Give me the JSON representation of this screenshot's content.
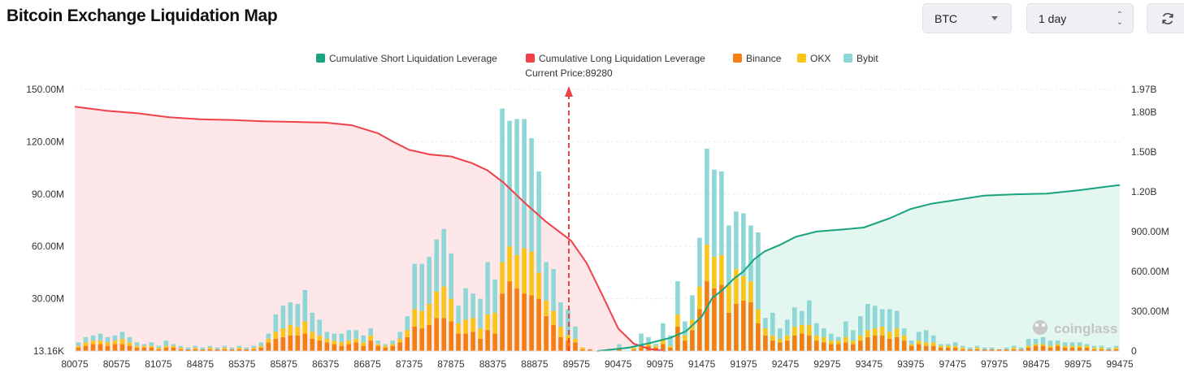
{
  "header": {
    "title": "Bitcoin Exchange Liquidation Map",
    "coin_select": "BTC",
    "range_select": "1 day"
  },
  "colors": {
    "short": "#1aa37f",
    "long": "#f04148",
    "binance": "#f47e12",
    "okx": "#fac51a",
    "bybit": "#8fd7d6",
    "long_fill": "#fde7e8",
    "short_fill": "#e3f6ef"
  },
  "chart_data": {
    "type": "bar",
    "title": "Bitcoin Exchange Liquidation Map",
    "current_price_label": "Current Price:89280",
    "current_price": 89280,
    "legend": [
      {
        "key": "short",
        "label": "Cumulative Short Liquidation Leverage"
      },
      {
        "key": "long",
        "label": "Cumulative Long Liquidation Leverage"
      },
      {
        "key": "binance",
        "label": "Binance"
      },
      {
        "key": "okx",
        "label": "OKX"
      },
      {
        "key": "bybit",
        "label": "Bybit"
      }
    ],
    "x_tick_labels": [
      "80075",
      "80575",
      "81075",
      "84875",
      "85375",
      "85875",
      "86375",
      "86875",
      "87375",
      "87875",
      "88375",
      "88875",
      "89575",
      "90475",
      "90975",
      "91475",
      "91975",
      "92475",
      "92975",
      "93475",
      "93975",
      "97475",
      "97975",
      "98475",
      "98975",
      "99475"
    ],
    "left_axis": {
      "tick_labels": [
        "13.16K",
        "30.00M",
        "60.00M",
        "90.00M",
        "120.00M",
        "150.00M"
      ],
      "tick_values": [
        0,
        30,
        60,
        90,
        120,
        150
      ],
      "max": 150,
      "unit": "M"
    },
    "right_axis": {
      "tick_labels": [
        "0",
        "300.00M",
        "600.00M",
        "900.00M",
        "1.20B",
        "1.50B",
        "1.80B",
        "1.97B"
      ],
      "tick_values": [
        0,
        300,
        600,
        900,
        1200,
        1500,
        1800,
        1970
      ],
      "max": 1970,
      "unit": "M"
    },
    "watermark": "coinglass",
    "bars": [
      {
        "binance": 2,
        "okx": 1,
        "bybit": 2
      },
      {
        "binance": 3,
        "okx": 2,
        "bybit": 3
      },
      {
        "binance": 4,
        "okx": 2,
        "bybit": 3
      },
      {
        "binance": 4,
        "okx": 2,
        "bybit": 4
      },
      {
        "binance": 3,
        "okx": 2,
        "bybit": 3
      },
      {
        "binance": 4,
        "okx": 2,
        "bybit": 3
      },
      {
        "binance": 4,
        "okx": 3,
        "bybit": 4
      },
      {
        "binance": 3,
        "okx": 2,
        "bybit": 3
      },
      {
        "binance": 2,
        "okx": 1,
        "bybit": 2
      },
      {
        "binance": 2,
        "okx": 1,
        "bybit": 1
      },
      {
        "binance": 2,
        "okx": 1,
        "bybit": 2
      },
      {
        "binance": 1,
        "okx": 1,
        "bybit": 1
      },
      {
        "binance": 2,
        "okx": 1,
        "bybit": 3
      },
      {
        "binance": 2,
        "okx": 1,
        "bybit": 1
      },
      {
        "binance": 1,
        "okx": 1,
        "bybit": 1
      },
      {
        "binance": 1,
        "okx": 0,
        "bybit": 1
      },
      {
        "binance": 1,
        "okx": 1,
        "bybit": 1
      },
      {
        "binance": 1,
        "okx": 0,
        "bybit": 1
      },
      {
        "binance": 1,
        "okx": 1,
        "bybit": 1
      },
      {
        "binance": 1,
        "okx": 0,
        "bybit": 1
      },
      {
        "binance": 1,
        "okx": 1,
        "bybit": 1
      },
      {
        "binance": 1,
        "okx": 0,
        "bybit": 1
      },
      {
        "binance": 1,
        "okx": 1,
        "bybit": 1
      },
      {
        "binance": 1,
        "okx": 0,
        "bybit": 1
      },
      {
        "binance": 1,
        "okx": 1,
        "bybit": 1
      },
      {
        "binance": 2,
        "okx": 1,
        "bybit": 2
      },
      {
        "binance": 5,
        "okx": 2,
        "bybit": 3
      },
      {
        "binance": 7,
        "okx": 4,
        "bybit": 10
      },
      {
        "binance": 8,
        "okx": 5,
        "bybit": 13
      },
      {
        "binance": 9,
        "okx": 6,
        "bybit": 13
      },
      {
        "binance": 9,
        "okx": 5,
        "bybit": 13
      },
      {
        "binance": 10,
        "okx": 7,
        "bybit": 18
      },
      {
        "binance": 7,
        "okx": 4,
        "bybit": 11
      },
      {
        "binance": 6,
        "okx": 3,
        "bybit": 9
      },
      {
        "binance": 5,
        "okx": 2,
        "bybit": 4
      },
      {
        "binance": 4,
        "okx": 2,
        "bybit": 4
      },
      {
        "binance": 3,
        "okx": 2,
        "bybit": 5
      },
      {
        "binance": 4,
        "okx": 2,
        "bybit": 6
      },
      {
        "binance": 5,
        "okx": 2,
        "bybit": 5
      },
      {
        "binance": 3,
        "okx": 2,
        "bybit": 4
      },
      {
        "binance": 6,
        "okx": 3,
        "bybit": 4
      },
      {
        "binance": 3,
        "okx": 1,
        "bybit": 2
      },
      {
        "binance": 2,
        "okx": 1,
        "bybit": 1
      },
      {
        "binance": 3,
        "okx": 1,
        "bybit": 2
      },
      {
        "binance": 5,
        "okx": 2,
        "bybit": 4
      },
      {
        "binance": 8,
        "okx": 4,
        "bybit": 8
      },
      {
        "binance": 14,
        "okx": 10,
        "bybit": 26
      },
      {
        "binance": 13,
        "okx": 10,
        "bybit": 27
      },
      {
        "binance": 15,
        "okx": 12,
        "bybit": 27
      },
      {
        "binance": 19,
        "okx": 15,
        "bybit": 30
      },
      {
        "binance": 19,
        "okx": 18,
        "bybit": 33
      },
      {
        "binance": 17,
        "okx": 13,
        "bybit": 26
      },
      {
        "binance": 10,
        "okx": 6,
        "bybit": 10
      },
      {
        "binance": 10,
        "okx": 8,
        "bybit": 18
      },
      {
        "binance": 11,
        "okx": 8,
        "bybit": 14
      },
      {
        "binance": 7,
        "okx": 6,
        "bybit": 17
      },
      {
        "binance": 12,
        "okx": 9,
        "bybit": 30
      },
      {
        "binance": 10,
        "okx": 12,
        "bybit": 19
      },
      {
        "binance": 33,
        "okx": 18,
        "bybit": 88
      },
      {
        "binance": 40,
        "okx": 20,
        "bybit": 72
      },
      {
        "binance": 36,
        "okx": 19,
        "bybit": 78
      },
      {
        "binance": 33,
        "okx": 26,
        "bybit": 74
      },
      {
        "binance": 32,
        "okx": 25,
        "bybit": 65
      },
      {
        "binance": 30,
        "okx": 15,
        "bybit": 58
      },
      {
        "binance": 20,
        "okx": 9,
        "bybit": 22
      },
      {
        "binance": 15,
        "okx": 8,
        "bybit": 24
      },
      {
        "binance": 8,
        "okx": 6,
        "bybit": 14
      },
      {
        "binance": 6,
        "okx": 3,
        "bybit": 15
      },
      {
        "binance": 5,
        "okx": 2,
        "bybit": 7
      },
      {
        "binance": 1,
        "okx": 1,
        "bybit": 0
      },
      {
        "binance": 1,
        "okx": 0,
        "bybit": 0
      },
      {
        "binance": 0,
        "okx": 0,
        "bybit": 0
      },
      {
        "binance": 0,
        "okx": 0,
        "bybit": 0
      },
      {
        "binance": 0,
        "okx": 0,
        "bybit": 0
      },
      {
        "binance": 1,
        "okx": 1,
        "bybit": 2
      },
      {
        "binance": 0,
        "okx": 0,
        "bybit": 0
      },
      {
        "binance": 1,
        "okx": 1,
        "bybit": 1
      },
      {
        "binance": 2,
        "okx": 1,
        "bybit": 7
      },
      {
        "binance": 3,
        "okx": 1,
        "bybit": 4
      },
      {
        "binance": 2,
        "okx": 1,
        "bybit": 1
      },
      {
        "binance": 4,
        "okx": 3,
        "bybit": 9
      },
      {
        "binance": 2,
        "okx": 1,
        "bybit": 6
      },
      {
        "binance": 14,
        "okx": 7,
        "bybit": 19
      },
      {
        "binance": 6,
        "okx": 3,
        "bybit": 8
      },
      {
        "binance": 12,
        "okx": 6,
        "bybit": 14
      },
      {
        "binance": 24,
        "okx": 13,
        "bybit": 28
      },
      {
        "binance": 40,
        "okx": 21,
        "bybit": 55
      },
      {
        "binance": 36,
        "okx": 18,
        "bybit": 50
      },
      {
        "binance": 38,
        "okx": 17,
        "bybit": 48
      },
      {
        "binance": 22,
        "okx": 16,
        "bybit": 34
      },
      {
        "binance": 27,
        "okx": 20,
        "bybit": 33
      },
      {
        "binance": 29,
        "okx": 14,
        "bybit": 36
      },
      {
        "binance": 28,
        "okx": 12,
        "bybit": 32
      },
      {
        "binance": 16,
        "okx": 8,
        "bybit": 44
      },
      {
        "binance": 9,
        "okx": 4,
        "bybit": 6
      },
      {
        "binance": 6,
        "okx": 3,
        "bybit": 13
      },
      {
        "binance": 5,
        "okx": 2,
        "bybit": 6
      },
      {
        "binance": 6,
        "okx": 3,
        "bybit": 9
      },
      {
        "binance": 9,
        "okx": 5,
        "bybit": 11
      },
      {
        "binance": 10,
        "okx": 5,
        "bybit": 8
      },
      {
        "binance": 9,
        "okx": 6,
        "bybit": 14
      },
      {
        "binance": 6,
        "okx": 3,
        "bybit": 7
      },
      {
        "binance": 5,
        "okx": 3,
        "bybit": 5
      },
      {
        "binance": 4,
        "okx": 2,
        "bybit": 4
      },
      {
        "binance": 4,
        "okx": 2,
        "bybit": 2
      },
      {
        "binance": 5,
        "okx": 3,
        "bybit": 9
      },
      {
        "binance": 4,
        "okx": 2,
        "bybit": 6
      },
      {
        "binance": 6,
        "okx": 3,
        "bybit": 11
      },
      {
        "binance": 8,
        "okx": 4,
        "bybit": 15
      },
      {
        "binance": 9,
        "okx": 4,
        "bybit": 13
      },
      {
        "binance": 9,
        "okx": 5,
        "bybit": 10
      },
      {
        "binance": 7,
        "okx": 4,
        "bybit": 13
      },
      {
        "binance": 8,
        "okx": 5,
        "bybit": 10
      },
      {
        "binance": 6,
        "okx": 3,
        "bybit": 4
      },
      {
        "binance": 3,
        "okx": 1,
        "bybit": 2
      },
      {
        "binance": 4,
        "okx": 2,
        "bybit": 5
      },
      {
        "binance": 3,
        "okx": 2,
        "bybit": 7
      },
      {
        "binance": 3,
        "okx": 2,
        "bybit": 4
      },
      {
        "binance": 2,
        "okx": 1,
        "bybit": 1
      },
      {
        "binance": 2,
        "okx": 1,
        "bybit": 1
      },
      {
        "binance": 2,
        "okx": 1,
        "bybit": 2
      },
      {
        "binance": 1,
        "okx": 1,
        "bybit": 1
      },
      {
        "binance": 1,
        "okx": 0,
        "bybit": 1
      },
      {
        "binance": 1,
        "okx": 1,
        "bybit": 1
      },
      {
        "binance": 1,
        "okx": 0,
        "bybit": 1
      },
      {
        "binance": 1,
        "okx": 0,
        "bybit": 1
      },
      {
        "binance": 1,
        "okx": 0,
        "bybit": 0
      },
      {
        "binance": 1,
        "okx": 0,
        "bybit": 1
      },
      {
        "binance": 1,
        "okx": 1,
        "bybit": 1
      },
      {
        "binance": 1,
        "okx": 0,
        "bybit": 1
      },
      {
        "binance": 2,
        "okx": 1,
        "bybit": 4
      },
      {
        "binance": 3,
        "okx": 1,
        "bybit": 3
      },
      {
        "binance": 3,
        "okx": 1,
        "bybit": 4
      },
      {
        "binance": 2,
        "okx": 1,
        "bybit": 3
      },
      {
        "binance": 3,
        "okx": 1,
        "bybit": 2
      },
      {
        "binance": 2,
        "okx": 1,
        "bybit": 2
      },
      {
        "binance": 2,
        "okx": 1,
        "bybit": 2
      },
      {
        "binance": 2,
        "okx": 1,
        "bybit": 2
      },
      {
        "binance": 2,
        "okx": 1,
        "bybit": 1
      },
      {
        "binance": 1,
        "okx": 1,
        "bybit": 1
      },
      {
        "binance": 1,
        "okx": 1,
        "bybit": 1
      },
      {
        "binance": 1,
        "okx": 0,
        "bybit": 1
      },
      {
        "binance": 1,
        "okx": 1,
        "bybit": 1
      }
    ],
    "long_curve": [
      [
        0,
        1840
      ],
      [
        0.03,
        1810
      ],
      [
        0.06,
        1790
      ],
      [
        0.09,
        1760
      ],
      [
        0.12,
        1745
      ],
      [
        0.15,
        1740
      ],
      [
        0.18,
        1730
      ],
      [
        0.21,
        1725
      ],
      [
        0.24,
        1720
      ],
      [
        0.265,
        1700
      ],
      [
        0.29,
        1640
      ],
      [
        0.305,
        1575
      ],
      [
        0.32,
        1515
      ],
      [
        0.34,
        1480
      ],
      [
        0.36,
        1465
      ],
      [
        0.38,
        1415
      ],
      [
        0.395,
        1360
      ],
      [
        0.41,
        1270
      ],
      [
        0.43,
        1120
      ],
      [
        0.45,
        980
      ],
      [
        0.475,
        830
      ],
      [
        0.49,
        660
      ],
      [
        0.505,
        420
      ],
      [
        0.52,
        170
      ],
      [
        0.535,
        55
      ],
      [
        0.55,
        15
      ],
      [
        0.565,
        0
      ]
    ],
    "short_curve": [
      [
        0.5,
        0
      ],
      [
        0.53,
        25
      ],
      [
        0.55,
        60
      ],
      [
        0.57,
        100
      ],
      [
        0.585,
        150
      ],
      [
        0.6,
        260
      ],
      [
        0.61,
        400
      ],
      [
        0.62,
        460
      ],
      [
        0.63,
        540
      ],
      [
        0.64,
        600
      ],
      [
        0.65,
        690
      ],
      [
        0.66,
        750
      ],
      [
        0.675,
        800
      ],
      [
        0.69,
        860
      ],
      [
        0.71,
        900
      ],
      [
        0.735,
        915
      ],
      [
        0.755,
        930
      ],
      [
        0.78,
        1000
      ],
      [
        0.8,
        1070
      ],
      [
        0.82,
        1110
      ],
      [
        0.845,
        1140
      ],
      [
        0.87,
        1170
      ],
      [
        0.9,
        1180
      ],
      [
        0.93,
        1185
      ],
      [
        0.96,
        1210
      ],
      [
        0.99,
        1240
      ],
      [
        1.0,
        1250
      ]
    ]
  }
}
